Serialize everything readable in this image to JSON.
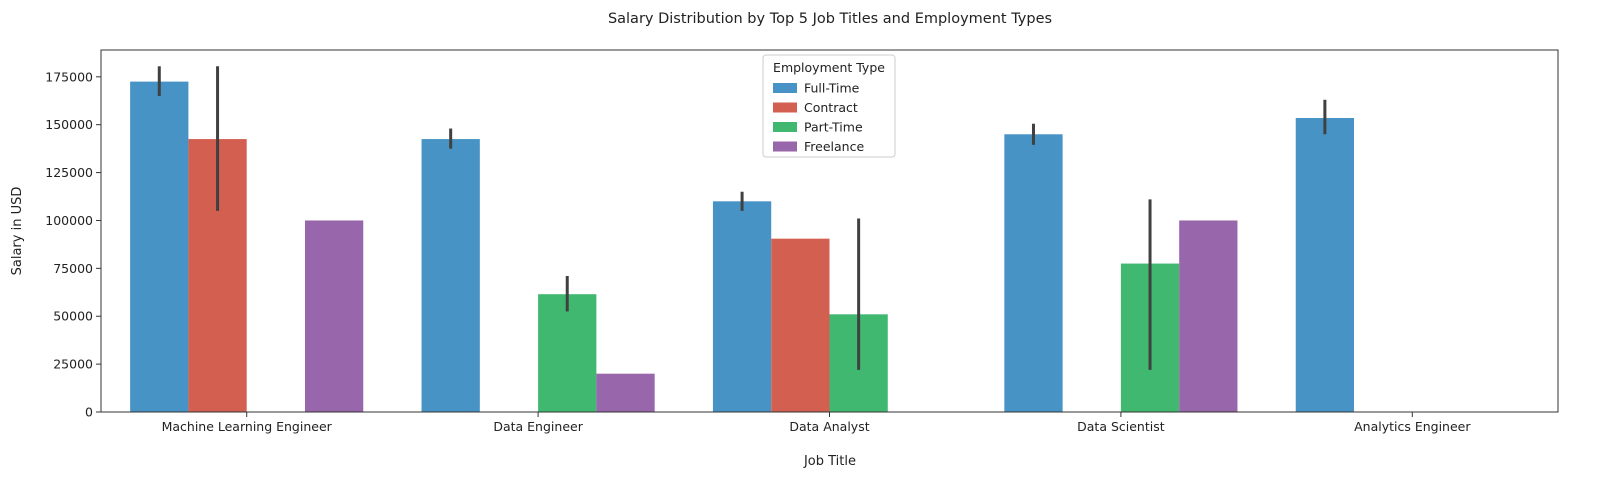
{
  "chart_data": {
    "type": "bar",
    "title": "Salary Distribution by Top 5 Job Titles and Employment Types",
    "xlabel": "Job Title",
    "ylabel": "Salary in USD",
    "ylim": [
      0,
      189000
    ],
    "yticks": [
      0,
      25000,
      50000,
      75000,
      100000,
      125000,
      150000,
      175000
    ],
    "yticks_text": [
      "0",
      "25000",
      "50000",
      "75000",
      "100000",
      "125000",
      "150000",
      "175000"
    ],
    "categories": [
      "Machine Learning Engineer",
      "Data Engineer",
      "Data Analyst",
      "Data Scientist",
      "Analytics Engineer"
    ],
    "grid": false,
    "legend": {
      "title": "Employment Type",
      "placement": "upper-center"
    },
    "series": [
      {
        "name": "Full-Time",
        "color": "#4793c6",
        "values": [
          172500,
          142500,
          110000,
          145000,
          153500
        ],
        "err_low": [
          165000,
          137500,
          105000,
          139500,
          145000
        ],
        "err_high": [
          180500,
          148000,
          115000,
          150500,
          163000
        ]
      },
      {
        "name": "Contract",
        "color": "#d35f50",
        "values": [
          142500,
          null,
          90500,
          null,
          null
        ],
        "err_low": [
          105000,
          null,
          null,
          null,
          null
        ],
        "err_high": [
          180500,
          null,
          null,
          null,
          null
        ]
      },
      {
        "name": "Part-Time",
        "color": "#40b870",
        "values": [
          null,
          61500,
          51000,
          77500,
          null
        ],
        "err_low": [
          null,
          52500,
          22000,
          22000,
          null
        ],
        "err_high": [
          null,
          71000,
          101000,
          111000,
          null
        ]
      },
      {
        "name": "Freelance",
        "color": "#9766ab",
        "values": [
          100000,
          20000,
          null,
          100000,
          null
        ],
        "err_low": [
          null,
          null,
          null,
          null,
          null
        ],
        "err_high": [
          null,
          null,
          null,
          null,
          null
        ]
      }
    ],
    "errorbar_color": "#404040"
  }
}
